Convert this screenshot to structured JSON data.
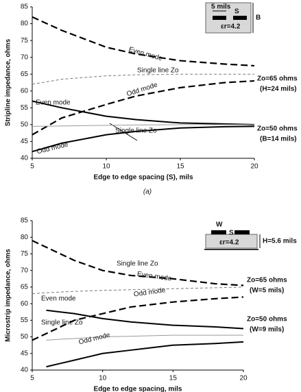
{
  "chart_data": [
    {
      "type": "line",
      "caption": "(a)",
      "xlabel": "Edge to edge spacing (S), mils",
      "ylabel": "Stripline impedance, ohms",
      "x": [
        5,
        7,
        10,
        12,
        15,
        18,
        20
      ],
      "xlim": [
        5,
        20
      ],
      "xticks": [
        5,
        10,
        15,
        20
      ],
      "ylim": [
        40,
        85
      ],
      "yticks": [
        40,
        45,
        50,
        55,
        60,
        65,
        70,
        75,
        80,
        85
      ],
      "series": [
        {
          "name": "Even mode",
          "color": "#000000",
          "dash": true,
          "width": 2.2,
          "values": [
            82,
            78,
            73,
            71,
            69,
            68,
            67.5
          ]
        },
        {
          "name": "Single line Zo",
          "color": "#777777",
          "dash": true,
          "width": 1,
          "values": [
            62,
            63.5,
            64.5,
            64.8,
            65,
            65,
            65
          ]
        },
        {
          "name": "Odd mode",
          "color": "#000000",
          "dash": true,
          "width": 2.2,
          "values": [
            47,
            52,
            56,
            58.5,
            61,
            62.5,
            63
          ]
        },
        {
          "name": "Even mode",
          "color": "#000000",
          "dash": false,
          "width": 2,
          "values": [
            57,
            55,
            52.5,
            51.5,
            50.5,
            50.2,
            50
          ]
        },
        {
          "name": "Single line Zo",
          "color": "#999999",
          "dash": false,
          "width": 1,
          "values": [
            49.5,
            49.6,
            49.8,
            49.9,
            50,
            50,
            50
          ]
        },
        {
          "name": "Odd mode",
          "color": "#000000",
          "dash": false,
          "width": 2,
          "values": [
            42,
            44.5,
            47,
            48,
            49,
            49.4,
            49.5
          ]
        }
      ],
      "annotations": [
        "Zo=65 ohms",
        "(H=24 mils)",
        "Zo=50 ohms",
        "(B=14 mils)"
      ],
      "inset": [
        "5 mils",
        "S",
        "εr=4.2",
        "B"
      ]
    },
    {
      "type": "line",
      "xlabel": "Edge to edge spacing, mils",
      "ylabel": "Microstrip impedance, ohms",
      "x": [
        5,
        6,
        7,
        8,
        10,
        12,
        15,
        18,
        20
      ],
      "xlim": [
        5,
        20
      ],
      "xticks": [
        5,
        10,
        15,
        20
      ],
      "ylim": [
        40,
        85
      ],
      "yticks": [
        40,
        45,
        50,
        55,
        60,
        65,
        70,
        75,
        80,
        85
      ],
      "series": [
        {
          "name": "Even mode",
          "color": "#000000",
          "dash": true,
          "width": 2.2,
          "values": [
            79,
            77,
            75,
            73,
            70,
            68.5,
            67.5,
            66,
            65.5
          ]
        },
        {
          "name": "Single line Zo",
          "color": "#777777",
          "dash": true,
          "width": 1,
          "values": [
            63,
            63.3,
            63.5,
            63.7,
            64,
            64.2,
            64.5,
            64.8,
            65
          ]
        },
        {
          "name": "Odd mode",
          "color": "#000000",
          "dash": true,
          "width": 2.2,
          "values": [
            49,
            51,
            53,
            55,
            57,
            59,
            60.5,
            61.5,
            62
          ]
        },
        {
          "name": "Even mode",
          "color": "#000000",
          "dash": false,
          "width": 2,
          "values": [
            null,
            58,
            57.5,
            57,
            55.5,
            54.5,
            53.5,
            53,
            52.5
          ]
        },
        {
          "name": "Single line Zo",
          "color": "#999999",
          "dash": false,
          "width": 1,
          "values": [
            null,
            49,
            49.3,
            49.5,
            50,
            50.2,
            50.5,
            50.5,
            50.5
          ]
        },
        {
          "name": "Odd mode",
          "color": "#000000",
          "dash": false,
          "width": 2,
          "values": [
            null,
            41,
            42,
            43,
            45,
            46,
            47.5,
            48,
            48.5
          ]
        }
      ],
      "annotations": [
        "Zo=65 ohms",
        "(W=5 mils)",
        "Zo=50 ohms",
        "(W=9 mils)"
      ],
      "inset": [
        "W",
        "S",
        "εr=4.2",
        "H=5.6 mils"
      ]
    }
  ]
}
